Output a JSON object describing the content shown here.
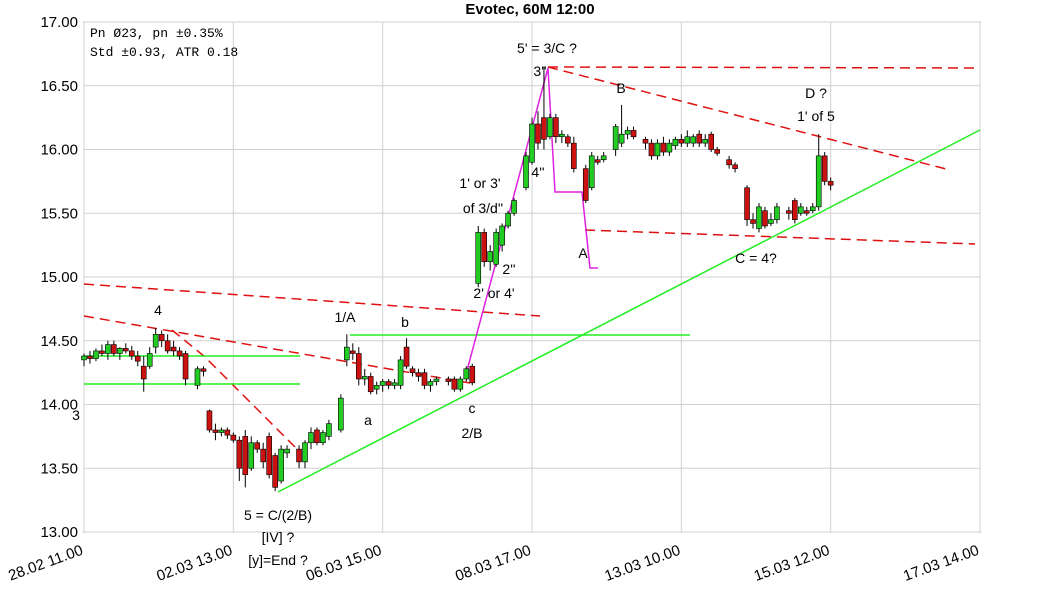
{
  "chart_data": {
    "type": "candlestick",
    "title": "Evotec, 60M 12:00",
    "info": [
      "Pn  Ø23, pn ±0.35%",
      "Std ±0.93, ATR 0.18"
    ],
    "up_color": "#22cc22",
    "down_color": "#cc1111",
    "grid": true,
    "ylim": [
      13,
      17
    ],
    "yticks": [
      {
        "value": 13,
        "label": "13.00"
      },
      {
        "value": 13.5,
        "label": "13.50"
      },
      {
        "value": 14,
        "label": "14.00"
      },
      {
        "value": 14.5,
        "label": "14.50"
      },
      {
        "value": 15,
        "label": "15.00"
      },
      {
        "value": 15.5,
        "label": "15.50"
      },
      {
        "value": 16,
        "label": "16.00"
      },
      {
        "value": 16.5,
        "label": "16.50"
      },
      {
        "value": 17,
        "label": "17.00"
      }
    ],
    "xlim": [
      0,
      150
    ],
    "xticks": [
      {
        "value": 0,
        "label": "28.02 11.00"
      },
      {
        "value": 25,
        "label": "02.03 13.00"
      },
      {
        "value": 50,
        "label": "06.03 15.00"
      },
      {
        "value": 75,
        "label": "08.03 17.00"
      },
      {
        "value": 100,
        "label": "13.03 10.00"
      },
      {
        "value": 125,
        "label": "15.03 12.00"
      },
      {
        "value": 150,
        "label": "17.03 14.00"
      }
    ],
    "x": [
      0,
      1,
      2,
      3,
      4,
      5,
      6,
      7,
      8,
      9,
      10,
      11,
      12,
      13,
      14,
      15,
      16,
      17,
      19,
      20,
      21,
      22,
      23,
      24,
      25,
      26,
      27,
      28,
      29,
      30,
      31,
      32,
      33,
      34,
      36,
      37,
      38,
      39,
      40,
      41,
      43,
      44,
      45,
      46,
      47,
      48,
      49,
      50,
      51,
      52,
      53,
      54,
      55,
      56,
      57,
      58,
      59,
      61,
      62,
      63,
      64,
      65,
      66,
      67,
      68,
      69,
      70,
      71,
      72,
      74,
      75,
      76,
      77,
      78,
      79,
      80,
      81,
      82,
      84,
      85,
      86,
      87,
      89,
      90,
      91,
      92,
      94,
      95,
      96,
      97,
      98,
      99,
      100,
      101,
      102,
      103,
      104,
      105,
      106,
      108,
      109,
      111,
      112,
      113,
      114,
      115,
      116,
      118,
      119,
      120,
      121,
      122,
      123,
      124,
      125
    ],
    "open": [
      14.35,
      14.38,
      14.36,
      14.42,
      14.4,
      14.47,
      14.4,
      14.44,
      14.42,
      14.38,
      14.3,
      14.3,
      14.45,
      14.55,
      14.5,
      14.45,
      14.42,
      14.4,
      14.15,
      14.28,
      13.95,
      13.8,
      13.78,
      13.8,
      13.76,
      13.72,
      13.75,
      13.5,
      13.7,
      13.65,
      13.75,
      13.6,
      13.4,
      13.62,
      13.65,
      13.55,
      13.7,
      13.8,
      13.7,
      13.75,
      13.8,
      14.35,
      14.42,
      14.4,
      14.2,
      14.22,
      14.12,
      14.15,
      14.18,
      14.15,
      14.15,
      14.45,
      14.28,
      14.25,
      14.25,
      14.15,
      14.18,
      14.2,
      14.2,
      14.12,
      14.2,
      14.3,
      14.95,
      15.35,
      15.12,
      15.1,
      15.25,
      15.4,
      15.5,
      15.7,
      15.9,
      16.2,
      16.25,
      16.1,
      16.25,
      16.1,
      16.1,
      16.05,
      15.85,
      15.7,
      15.92,
      15.92,
      16.0,
      16.05,
      16.12,
      16.15,
      16.08,
      16.05,
      15.95,
      16.05,
      15.98,
      16.03,
      16.08,
      16.05,
      16.05,
      16.12,
      16.05,
      16.12,
      16.0,
      15.92,
      15.88,
      15.7,
      15.45,
      15.38,
      15.52,
      15.42,
      15.45,
      15.52,
      15.6,
      15.5,
      15.52,
      15.52,
      15.55,
      15.95,
      15.75
    ],
    "high": [
      14.4,
      14.42,
      14.44,
      14.47,
      14.5,
      14.5,
      14.45,
      14.48,
      14.46,
      14.42,
      14.38,
      14.45,
      14.6,
      14.58,
      14.55,
      14.5,
      14.45,
      14.42,
      14.3,
      14.3,
      13.96,
      13.85,
      13.82,
      13.82,
      13.78,
      13.75,
      13.8,
      13.75,
      13.72,
      13.7,
      13.78,
      13.62,
      13.68,
      13.68,
      13.68,
      13.72,
      13.82,
      13.82,
      13.8,
      13.88,
      14.08,
      14.55,
      14.48,
      14.45,
      14.28,
      14.25,
      14.18,
      14.2,
      14.2,
      14.2,
      14.38,
      14.52,
      14.3,
      14.28,
      14.28,
      14.2,
      14.22,
      14.22,
      14.22,
      14.22,
      14.3,
      14.32,
      15.4,
      15.38,
      15.25,
      15.38,
      15.42,
      15.52,
      15.62,
      15.98,
      16.25,
      16.3,
      16.65,
      16.28,
      16.28,
      16.15,
      16.12,
      16.1,
      15.88,
      15.98,
      15.95,
      15.98,
      16.2,
      16.35,
      16.18,
      16.18,
      16.1,
      16.08,
      16.08,
      16.1,
      16.08,
      16.1,
      16.12,
      16.15,
      16.12,
      16.15,
      16.12,
      16.14,
      16.02,
      15.95,
      15.9,
      15.72,
      15.5,
      15.58,
      15.55,
      15.5,
      15.58,
      15.55,
      15.62,
      15.58,
      15.55,
      15.58,
      16.12,
      15.98,
      15.78
    ],
    "low": [
      14.3,
      14.32,
      14.34,
      14.38,
      14.35,
      14.38,
      14.35,
      14.4,
      14.35,
      14.3,
      14.1,
      14.28,
      14.4,
      14.45,
      14.4,
      14.38,
      14.35,
      14.15,
      14.12,
      14.22,
      13.78,
      13.72,
      13.75,
      13.73,
      13.7,
      13.4,
      13.35,
      13.48,
      13.62,
      13.5,
      13.42,
      13.32,
      13.38,
      13.58,
      13.5,
      13.5,
      13.65,
      13.68,
      13.68,
      13.72,
      13.78,
      14.3,
      14.35,
      14.15,
      14.15,
      14.08,
      14.08,
      14.1,
      14.12,
      14.12,
      14.12,
      14.28,
      14.22,
      14.18,
      14.12,
      14.1,
      14.15,
      14.15,
      14.1,
      14.1,
      14.18,
      14.15,
      14.92,
      15.08,
      15.05,
      15.08,
      15.2,
      15.38,
      15.48,
      15.68,
      15.88,
      16.0,
      16.0,
      16.08,
      16.05,
      16.05,
      16.02,
      15.82,
      15.58,
      15.68,
      15.88,
      15.9,
      15.95,
      16.02,
      16.08,
      16.08,
      16.0,
      15.92,
      15.92,
      15.95,
      15.95,
      16.0,
      16.02,
      16.02,
      16.02,
      16.02,
      16.02,
      15.98,
      15.95,
      15.85,
      15.82,
      15.4,
      15.38,
      15.35,
      15.38,
      15.4,
      15.42,
      15.45,
      15.42,
      15.48,
      15.48,
      15.5,
      15.52,
      15.72,
      15.68
    ],
    "close": [
      14.38,
      14.36,
      14.42,
      14.4,
      14.47,
      14.4,
      14.44,
      14.42,
      14.38,
      14.34,
      14.2,
      14.4,
      14.55,
      14.5,
      14.42,
      14.42,
      14.38,
      14.2,
      14.28,
      14.26,
      13.8,
      13.78,
      13.8,
      13.76,
      13.72,
      13.5,
      13.45,
      13.7,
      13.65,
      13.55,
      13.45,
      13.35,
      13.65,
      13.65,
      13.55,
      13.7,
      13.78,
      13.7,
      13.78,
      13.85,
      14.05,
      14.45,
      14.4,
      14.2,
      14.22,
      14.1,
      14.15,
      14.18,
      14.15,
      14.17,
      14.35,
      14.3,
      14.25,
      14.22,
      14.15,
      14.18,
      14.2,
      14.18,
      14.12,
      14.2,
      14.28,
      14.17,
      15.35,
      15.12,
      15.2,
      15.35,
      15.4,
      15.5,
      15.6,
      15.95,
      16.2,
      16.05,
      16.08,
      16.25,
      16.1,
      16.12,
      16.05,
      15.85,
      15.6,
      15.95,
      15.9,
      15.95,
      16.18,
      16.12,
      16.15,
      16.1,
      16.05,
      15.95,
      16.05,
      15.98,
      16.05,
      16.08,
      16.05,
      16.1,
      16.1,
      16.05,
      16.08,
      16.0,
      15.97,
      15.88,
      15.85,
      15.45,
      15.42,
      15.55,
      15.4,
      15.45,
      15.55,
      15.5,
      15.45,
      15.55,
      15.5,
      15.55,
      15.95,
      15.75,
      15.72
    ],
    "annotations": [
      "4",
      "3",
      "1/A",
      "b",
      "a",
      "c",
      "2/B",
      "5 = C/(2/B)",
      "[IV] ?",
      "[y]=End ?",
      "1' or 3'",
      "of 3/d''",
      "2''",
      "2' or 4'",
      "4''",
      "5' = 3/C ?",
      "3''",
      "A",
      "B",
      "C = 4?",
      "D ?",
      "1' of 5"
    ]
  }
}
